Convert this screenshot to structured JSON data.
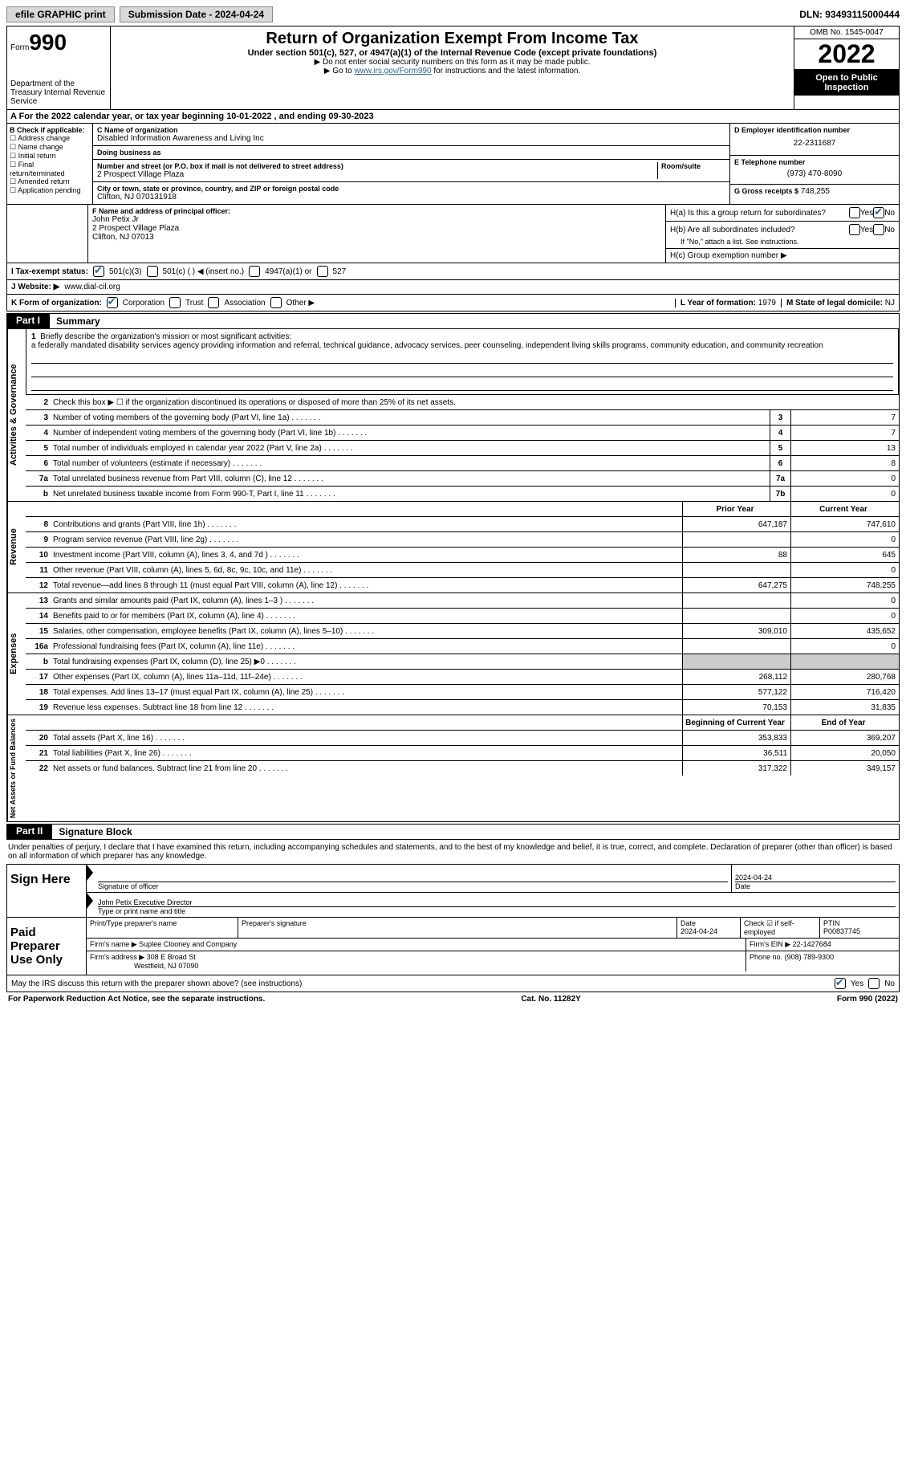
{
  "topbar": {
    "efile": "efile GRAPHIC print",
    "submission": "Submission Date - 2024-04-24",
    "dln": "DLN: 93493115000444"
  },
  "header": {
    "form_label": "Form",
    "form_number": "990",
    "title": "Return of Organization Exempt From Income Tax",
    "subtitle": "Under section 501(c), 527, or 4947(a)(1) of the Internal Revenue Code (except private foundations)",
    "note1": "▶ Do not enter social security numbers on this form as it may be made public.",
    "note2_prefix": "▶ Go to ",
    "note2_link": "www.irs.gov/Form990",
    "note2_suffix": " for instructions and the latest information.",
    "dept": "Department of the Treasury Internal Revenue Service",
    "omb": "OMB No. 1545-0047",
    "year": "2022",
    "inspection": "Open to Public Inspection"
  },
  "row_a": "A For the 2022 calendar year, or tax year beginning 10-01-2022   , and ending 09-30-2023",
  "section_b": {
    "label": "B Check if applicable:",
    "items": [
      "Address change",
      "Name change",
      "Initial return",
      "Final return/terminated",
      "Amended return",
      "Application pending"
    ]
  },
  "section_c": {
    "name_label": "C Name of organization",
    "name": "Disabled Information Awareness and Living Inc",
    "dba_label": "Doing business as",
    "dba": "",
    "addr_label": "Number and street (or P.O. box if mail is not delivered to street address)",
    "room_label": "Room/suite",
    "addr": "2 Prospect Village Plaza",
    "city_label": "City or town, state or province, country, and ZIP or foreign postal code",
    "city": "Clifton, NJ  070131918"
  },
  "section_d": {
    "ein_label": "D Employer identification number",
    "ein": "22-2311687",
    "phone_label": "E Telephone number",
    "phone": "(973) 470-8090",
    "gross_label": "G Gross receipts $",
    "gross": "748,255"
  },
  "section_f": {
    "label": "F Name and address of principal officer:",
    "name": "John Petix Jr",
    "addr1": "2 Prospect Village Plaza",
    "addr2": "Clifton, NJ  07013"
  },
  "section_h": {
    "a_label": "H(a)  Is this a group return for subordinates?",
    "b_label": "H(b)  Are all subordinates included?",
    "b_note": "If \"No,\" attach a list. See instructions.",
    "c_label": "H(c)  Group exemption number ▶"
  },
  "tax_status": {
    "label": "I  Tax-exempt status:",
    "opt1": "501(c)(3)",
    "opt2": "501(c) (  ) ◀ (insert no.)",
    "opt3": "4947(a)(1) or",
    "opt4": "527"
  },
  "website": {
    "label": "J  Website: ▶",
    "value": "www.dial-cil.org"
  },
  "form_org": {
    "label": "K Form of organization:",
    "opts": [
      "Corporation",
      "Trust",
      "Association",
      "Other ▶"
    ],
    "year_label": "L Year of formation:",
    "year": "1979",
    "state_label": "M State of legal domicile:",
    "state": "NJ"
  },
  "part1": {
    "tab": "Part I",
    "title": "Summary"
  },
  "mission": {
    "num": "1",
    "label": "Briefly describe the organization's mission or most significant activities:",
    "text": "a federally mandated disability services agency providing information and referral, technical guidance, advocacy services, peer counseling, independent living skills programs, community education, and community recreation"
  },
  "line2": {
    "num": "2",
    "desc": "Check this box ▶ ☐ if the organization discontinued its operations or disposed of more than 25% of its net assets."
  },
  "gov_lines": [
    {
      "n": "3",
      "d": "Number of voting members of the governing body (Part VI, line 1a)",
      "box": "3",
      "v": "7"
    },
    {
      "n": "4",
      "d": "Number of independent voting members of the governing body (Part VI, line 1b)",
      "box": "4",
      "v": "7"
    },
    {
      "n": "5",
      "d": "Total number of individuals employed in calendar year 2022 (Part V, line 2a)",
      "box": "5",
      "v": "13"
    },
    {
      "n": "6",
      "d": "Total number of volunteers (estimate if necessary)",
      "box": "6",
      "v": "8"
    },
    {
      "n": "7a",
      "d": "Total unrelated business revenue from Part VIII, column (C), line 12",
      "box": "7a",
      "v": "0"
    },
    {
      "n": "b",
      "d": "Net unrelated business taxable income from Form 990-T, Part I, line 11",
      "box": "7b",
      "v": "0"
    }
  ],
  "col_headers": {
    "prior": "Prior Year",
    "current": "Current Year"
  },
  "revenue": [
    {
      "n": "8",
      "d": "Contributions and grants (Part VIII, line 1h)",
      "p": "647,187",
      "c": "747,610"
    },
    {
      "n": "9",
      "d": "Program service revenue (Part VIII, line 2g)",
      "p": "",
      "c": "0"
    },
    {
      "n": "10",
      "d": "Investment income (Part VIII, column (A), lines 3, 4, and 7d )",
      "p": "88",
      "c": "645"
    },
    {
      "n": "11",
      "d": "Other revenue (Part VIII, column (A), lines 5, 6d, 8c, 9c, 10c, and 11e)",
      "p": "",
      "c": "0"
    },
    {
      "n": "12",
      "d": "Total revenue—add lines 8 through 11 (must equal Part VIII, column (A), line 12)",
      "p": "647,275",
      "c": "748,255"
    }
  ],
  "expenses": [
    {
      "n": "13",
      "d": "Grants and similar amounts paid (Part IX, column (A), lines 1–3 )",
      "p": "",
      "c": "0"
    },
    {
      "n": "14",
      "d": "Benefits paid to or for members (Part IX, column (A), line 4)",
      "p": "",
      "c": "0"
    },
    {
      "n": "15",
      "d": "Salaries, other compensation, employee benefits (Part IX, column (A), lines 5–10)",
      "p": "309,010",
      "c": "435,652"
    },
    {
      "n": "16a",
      "d": "Professional fundraising fees (Part IX, column (A), line 11e)",
      "p": "",
      "c": "0"
    },
    {
      "n": "b",
      "d": "Total fundraising expenses (Part IX, column (D), line 25) ▶0",
      "p": "shade",
      "c": "shade"
    },
    {
      "n": "17",
      "d": "Other expenses (Part IX, column (A), lines 11a–11d, 11f–24e)",
      "p": "268,112",
      "c": "280,768"
    },
    {
      "n": "18",
      "d": "Total expenses. Add lines 13–17 (must equal Part IX, column (A), line 25)",
      "p": "577,122",
      "c": "716,420"
    },
    {
      "n": "19",
      "d": "Revenue less expenses. Subtract line 18 from line 12",
      "p": "70,153",
      "c": "31,835"
    }
  ],
  "net_headers": {
    "begin": "Beginning of Current Year",
    "end": "End of Year"
  },
  "netassets": [
    {
      "n": "20",
      "d": "Total assets (Part X, line 16)",
      "p": "353,833",
      "c": "369,207"
    },
    {
      "n": "21",
      "d": "Total liabilities (Part X, line 26)",
      "p": "36,511",
      "c": "20,050"
    },
    {
      "n": "22",
      "d": "Net assets or fund balances. Subtract line 21 from line 20",
      "p": "317,322",
      "c": "349,157"
    }
  ],
  "side_labels": {
    "gov": "Activities & Governance",
    "rev": "Revenue",
    "exp": "Expenses",
    "net": "Net Assets or Fund Balances"
  },
  "part2": {
    "tab": "Part II",
    "title": "Signature Block"
  },
  "sig_declaration": "Under penalties of perjury, I declare that I have examined this return, including accompanying schedules and statements, and to the best of my knowledge and belief, it is true, correct, and complete. Declaration of preparer (other than officer) is based on all information of which preparer has any knowledge.",
  "sign_here": {
    "label": "Sign Here",
    "sig_label": "Signature of officer",
    "date": "2024-04-24",
    "date_label": "Date",
    "name": "John Petix  Executive Director",
    "name_label": "Type or print name and title"
  },
  "preparer": {
    "label": "Paid Preparer Use Only",
    "print_label": "Print/Type preparer's name",
    "sig_label": "Preparer's signature",
    "date_label": "Date",
    "date": "2024-04-24",
    "check_label": "Check ☑ if self-employed",
    "ptin_label": "PTIN",
    "ptin": "P00837745",
    "firm_name_label": "Firm's name    ▶",
    "firm_name": "Suplee Clooney and Company",
    "firm_ein_label": "Firm's EIN ▶",
    "firm_ein": "22-1427684",
    "firm_addr_label": "Firm's address ▶",
    "firm_addr": "308 E Broad St",
    "firm_city": "Westfield, NJ  07090",
    "phone_label": "Phone no.",
    "phone": "(908) 789-9300"
  },
  "discuss": "May the IRS discuss this return with the preparer shown above? (see instructions)",
  "footer": {
    "left": "For Paperwork Reduction Act Notice, see the separate instructions.",
    "mid": "Cat. No. 11282Y",
    "right": "Form 990 (2022)"
  }
}
